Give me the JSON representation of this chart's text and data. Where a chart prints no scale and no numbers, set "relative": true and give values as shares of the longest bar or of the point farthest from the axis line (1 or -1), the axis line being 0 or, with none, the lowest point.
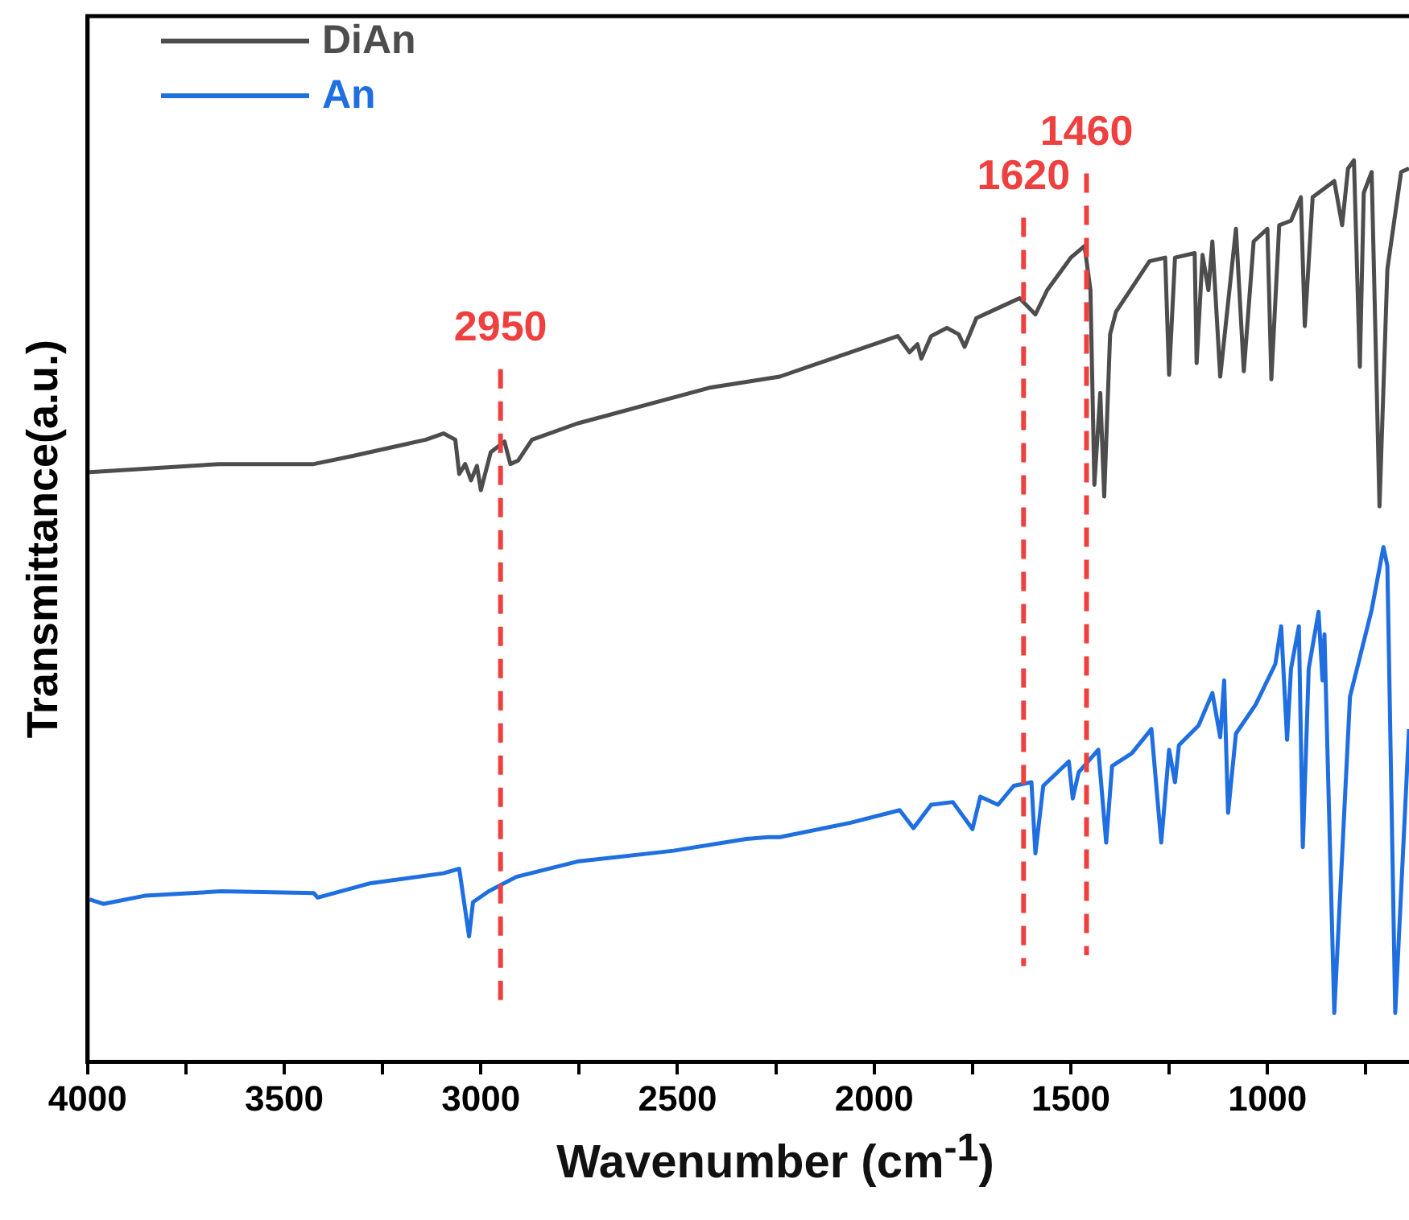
{
  "chart_data": {
    "type": "line",
    "relative": true,
    "xlabel": "Wavenumber (cm$^{-1}$)",
    "ylabel": "Transmittance(a.u.)",
    "xlim": [
      4000,
      640
    ],
    "xticks": [
      4000,
      {
        "value": 3750,
        "label": null
      },
      3500,
      {
        "value": 3250,
        "label": null
      },
      3000,
      {
        "value": 2750,
        "label": null
      },
      2500,
      {
        "value": 2250,
        "label": null
      },
      2000,
      {
        "value": 1750,
        "label": null
      },
      1500,
      {
        "value": 1250,
        "label": null
      },
      1000,
      {
        "value": 750,
        "label": null
      }
    ],
    "legend": "top left",
    "grid": false,
    "ref_lines": [
      {
        "axis": "x",
        "value": 2950,
        "label": "2950",
        "color": "#ef4040",
        "line_style": "dashed"
      },
      {
        "axis": "x",
        "value": 1620,
        "label": "1620",
        "color": "#ef4040",
        "line_style": "dashed"
      },
      {
        "axis": "x",
        "value": 1460,
        "label": "1460",
        "color": "#ef4040",
        "line_style": "dashed"
      }
    ],
    "series": [
      {
        "name": "DiAn",
        "color": "#4d4d4d",
        "x": [
          3995,
          3665,
          3425,
          3325,
          3140,
          3095,
          3065,
          3055,
          3040,
          3025,
          3010,
          3000,
          2975,
          2940,
          2925,
          2905,
          2870,
          2755,
          2415,
          2240,
          1940,
          1910,
          1890,
          1880,
          1855,
          1815,
          1785,
          1770,
          1740,
          1675,
          1630,
          1590,
          1560,
          1500,
          1465,
          1450,
          1440,
          1425,
          1415,
          1400,
          1385,
          1300,
          1260,
          1250,
          1235,
          1185,
          1180,
          1165,
          1150,
          1140,
          1120,
          1080,
          1060,
          1035,
          1000,
          990,
          970,
          940,
          915,
          905,
          885,
          830,
          810,
          795,
          780,
          765,
          755,
          735,
          715,
          695,
          660,
          640
        ],
        "values": [
          0.654,
          0.663,
          0.663,
          0.672,
          0.69,
          0.697,
          0.69,
          0.652,
          0.663,
          0.645,
          0.661,
          0.634,
          0.676,
          0.688,
          0.663,
          0.667,
          0.69,
          0.708,
          0.748,
          0.76,
          0.805,
          0.787,
          0.796,
          0.78,
          0.805,
          0.814,
          0.807,
          0.793,
          0.825,
          0.838,
          0.847,
          0.829,
          0.856,
          0.892,
          0.905,
          0.856,
          0.64,
          0.742,
          0.627,
          0.807,
          0.832,
          0.888,
          0.892,
          0.762,
          0.892,
          0.897,
          0.775,
          0.895,
          0.856,
          0.91,
          0.76,
          0.924,
          0.766,
          0.91,
          0.924,
          0.757,
          0.928,
          0.933,
          0.959,
          0.816,
          0.959,
          0.977,
          0.928,
          0.991,
          1.0,
          0.771,
          0.964,
          0.987,
          0.616,
          0.879,
          0.987,
          0.991
        ]
      },
      {
        "name": "An",
        "color": "#1f6fe0",
        "x": [
          3995,
          3960,
          3855,
          3660,
          3425,
          3415,
          3280,
          3095,
          3055,
          3030,
          3020,
          2980,
          2910,
          2755,
          2510,
          2325,
          2270,
          2240,
          2060,
          1935,
          1900,
          1855,
          1800,
          1750,
          1730,
          1685,
          1645,
          1600,
          1590,
          1570,
          1505,
          1495,
          1480,
          1430,
          1410,
          1395,
          1345,
          1295,
          1270,
          1250,
          1235,
          1225,
          1175,
          1140,
          1120,
          1110,
          1100,
          1080,
          1030,
          980,
          965,
          950,
          940,
          920,
          910,
          895,
          870,
          860,
          855,
          830,
          790,
          735,
          705,
          695,
          675,
          640
        ],
        "values": [
          0.18,
          0.175,
          0.184,
          0.189,
          0.187,
          0.182,
          0.198,
          0.209,
          0.214,
          0.139,
          0.177,
          0.189,
          0.205,
          0.222,
          0.234,
          0.247,
          0.249,
          0.249,
          0.265,
          0.279,
          0.259,
          0.285,
          0.288,
          0.258,
          0.294,
          0.285,
          0.306,
          0.31,
          0.231,
          0.306,
          0.333,
          0.292,
          0.321,
          0.346,
          0.243,
          0.328,
          0.342,
          0.369,
          0.243,
          0.346,
          0.31,
          0.351,
          0.373,
          0.409,
          0.36,
          0.423,
          0.276,
          0.364,
          0.396,
          0.441,
          0.483,
          0.357,
          0.436,
          0.483,
          0.238,
          0.436,
          0.499,
          0.423,
          0.474,
          0.054,
          0.405,
          0.501,
          0.571,
          0.55,
          0.054,
          0.369
        ]
      }
    ]
  }
}
